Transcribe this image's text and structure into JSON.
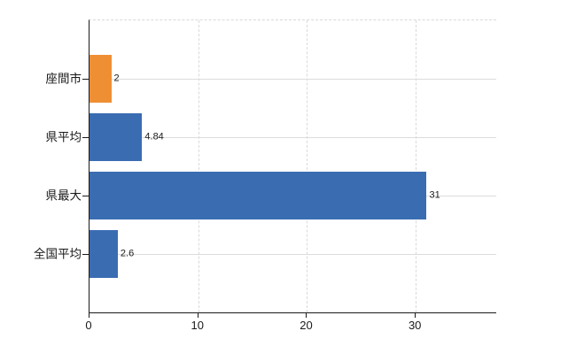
{
  "chart_data": {
    "type": "bar",
    "orientation": "horizontal",
    "title": "",
    "xlabel": "",
    "ylabel": "",
    "categories": [
      "座間市",
      "県平均",
      "県最大",
      "全国平均"
    ],
    "values": [
      2,
      4.84,
      31,
      2.6
    ],
    "value_labels": [
      "2",
      "4.84",
      "31",
      "2.6"
    ],
    "bar_colors": [
      "#ef8f34",
      "#3a6cb2",
      "#3a6cb2",
      "#3a6cb2"
    ],
    "x_ticks": [
      0,
      10,
      20,
      30
    ],
    "x_tick_labels": [
      "0",
      "10",
      "20",
      "30"
    ],
    "xlim": [
      0,
      37.4
    ],
    "grid": true,
    "legend": false,
    "axis_color": "#1a1a1a",
    "grid_color": "#d9d9d9"
  }
}
